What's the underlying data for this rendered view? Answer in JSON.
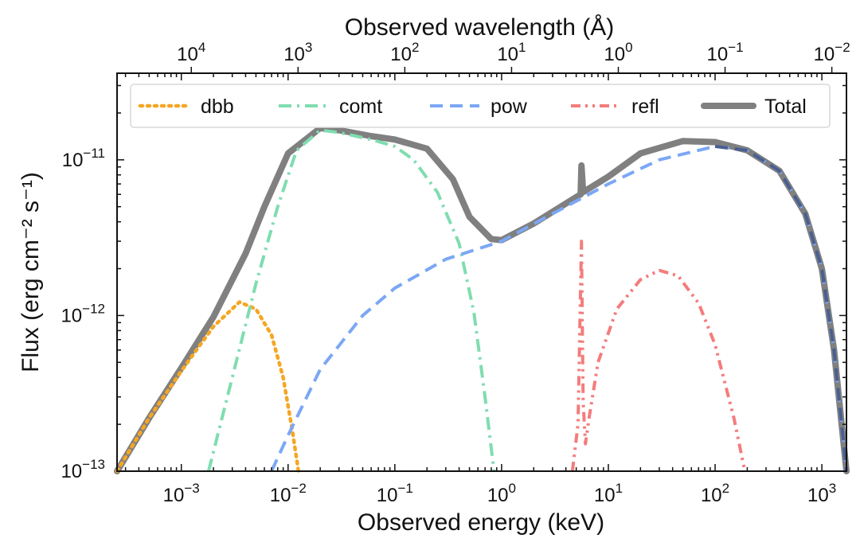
{
  "chart_data": {
    "type": "line",
    "scale": {
      "x": "log",
      "y": "log"
    },
    "xlabel": "Observed energy (keV)",
    "ylabel": "Flux (erg cm⁻² s⁻¹)",
    "top_xlabel": "Observed wavelength (Å)",
    "xlim": [
      0.00025,
      1700
    ],
    "ylim": [
      1e-13,
      3.6e-11
    ],
    "x_ticks": [
      {
        "value": 0.001,
        "base": "10",
        "exp": "−3"
      },
      {
        "value": 0.01,
        "base": "10",
        "exp": "−2"
      },
      {
        "value": 0.1,
        "base": "10",
        "exp": "−1"
      },
      {
        "value": 1,
        "base": "10",
        "exp": "0"
      },
      {
        "value": 10,
        "base": "10",
        "exp": "1"
      },
      {
        "value": 100,
        "base": "10",
        "exp": "2"
      },
      {
        "value": 1000,
        "base": "10",
        "exp": "3"
      }
    ],
    "y_ticks": [
      {
        "value": 1e-13,
        "base": "10",
        "exp": "−13"
      },
      {
        "value": 1e-12,
        "base": "10",
        "exp": "−12"
      },
      {
        "value": 1e-11,
        "base": "10",
        "exp": "−11"
      }
    ],
    "top_ticks": [
      {
        "wavelength": 10000,
        "base": "10",
        "exp": "4"
      },
      {
        "wavelength": 1000,
        "base": "10",
        "exp": "3"
      },
      {
        "wavelength": 100,
        "base": "10",
        "exp": "2"
      },
      {
        "wavelength": 10,
        "base": "10",
        "exp": "1"
      },
      {
        "wavelength": 1,
        "base": "10",
        "exp": "0"
      },
      {
        "wavelength": 0.1,
        "base": "10",
        "exp": "−1"
      },
      {
        "wavelength": 0.01,
        "base": "10",
        "exp": "−2"
      }
    ],
    "legend_position": "top",
    "series": [
      {
        "name": "dbb",
        "color": "#F5A623",
        "style": "dotted",
        "points": [
          [
            0.00025,
            1e-13
          ],
          [
            0.0005,
            2.2e-13
          ],
          [
            0.001,
            4.4e-13
          ],
          [
            0.002,
            8.5e-13
          ],
          [
            0.0035,
            1.22e-12
          ],
          [
            0.005,
            1.1e-12
          ],
          [
            0.007,
            7.5e-13
          ],
          [
            0.009,
            4e-13
          ],
          [
            0.011,
            1.8e-13
          ],
          [
            0.0125,
            1e-13
          ]
        ]
      },
      {
        "name": "comt",
        "color": "#7FDDB0",
        "style": "dashdot",
        "points": [
          [
            0.0018,
            1e-13
          ],
          [
            0.003,
            4e-13
          ],
          [
            0.005,
            1.6e-12
          ],
          [
            0.008,
            5e-12
          ],
          [
            0.012,
            1.15e-11
          ],
          [
            0.02,
            1.55e-11
          ],
          [
            0.03,
            1.5e-11
          ],
          [
            0.06,
            1.35e-11
          ],
          [
            0.1,
            1.22e-11
          ],
          [
            0.15,
            1e-11
          ],
          [
            0.25,
            6.2e-12
          ],
          [
            0.4,
            2.9e-12
          ],
          [
            0.55,
            1.05e-12
          ],
          [
            0.7,
            3e-13
          ],
          [
            0.85,
            1e-13
          ]
        ]
      },
      {
        "name": "pow",
        "color": "#7BA7F5",
        "style": "dashed",
        "points": [
          [
            0.007,
            1e-13
          ],
          [
            0.01,
            1.7e-13
          ],
          [
            0.02,
            4.5e-13
          ],
          [
            0.05,
            1e-12
          ],
          [
            0.1,
            1.5e-12
          ],
          [
            0.3,
            2.3e-12
          ],
          [
            1,
            3e-12
          ],
          [
            3,
            4.5e-12
          ],
          [
            10,
            7e-12
          ],
          [
            30,
            1e-11
          ],
          [
            100,
            1.22e-11
          ],
          [
            200,
            1.15e-11
          ],
          [
            400,
            8.5e-12
          ],
          [
            700,
            4.5e-12
          ],
          [
            1000,
            2e-12
          ],
          [
            1300,
            6e-13
          ],
          [
            1700,
            1e-13
          ]
        ]
      },
      {
        "name": "refl",
        "color": "#F47C7C",
        "style": "dashdotdot",
        "points": [
          [
            4.6,
            1e-13
          ],
          [
            5.2,
            2e-13
          ],
          [
            5.6,
            3e-12
          ],
          [
            5.8,
            2.8e-13
          ],
          [
            6.1,
            1.5e-13
          ],
          [
            6.6,
            2.2e-13
          ],
          [
            8,
            5e-13
          ],
          [
            12,
            1.1e-12
          ],
          [
            20,
            1.7e-12
          ],
          [
            30,
            1.95e-12
          ],
          [
            45,
            1.8e-12
          ],
          [
            70,
            1.2e-12
          ],
          [
            100,
            6.5e-13
          ],
          [
            150,
            2.2e-13
          ],
          [
            190,
            1e-13
          ]
        ]
      },
      {
        "name": "Total",
        "color": "#808080",
        "style": "solid",
        "points": [
          [
            0.00025,
            1e-13
          ],
          [
            0.0005,
            2.2e-13
          ],
          [
            0.001,
            4.6e-13
          ],
          [
            0.002,
            9.8e-13
          ],
          [
            0.004,
            2.5e-12
          ],
          [
            0.006,
            5e-12
          ],
          [
            0.01,
            1.1e-11
          ],
          [
            0.02,
            1.6e-11
          ],
          [
            0.03,
            1.55e-11
          ],
          [
            0.06,
            1.42e-11
          ],
          [
            0.1,
            1.35e-11
          ],
          [
            0.2,
            1.18e-11
          ],
          [
            0.35,
            7.5e-12
          ],
          [
            0.5,
            4.3e-12
          ],
          [
            0.8,
            3.1e-12
          ],
          [
            1,
            3.05e-12
          ],
          [
            2,
            3.9e-12
          ],
          [
            5.5,
            6e-12
          ],
          [
            5.6,
            9.2e-12
          ],
          [
            5.8,
            6.2e-12
          ],
          [
            10,
            7.8e-12
          ],
          [
            20,
            1.1e-11
          ],
          [
            50,
            1.32e-11
          ],
          [
            100,
            1.3e-11
          ],
          [
            200,
            1.15e-11
          ],
          [
            400,
            8.5e-12
          ],
          [
            700,
            4.5e-12
          ],
          [
            1000,
            2e-12
          ],
          [
            1300,
            6e-13
          ],
          [
            1700,
            1e-13
          ]
        ]
      }
    ]
  }
}
